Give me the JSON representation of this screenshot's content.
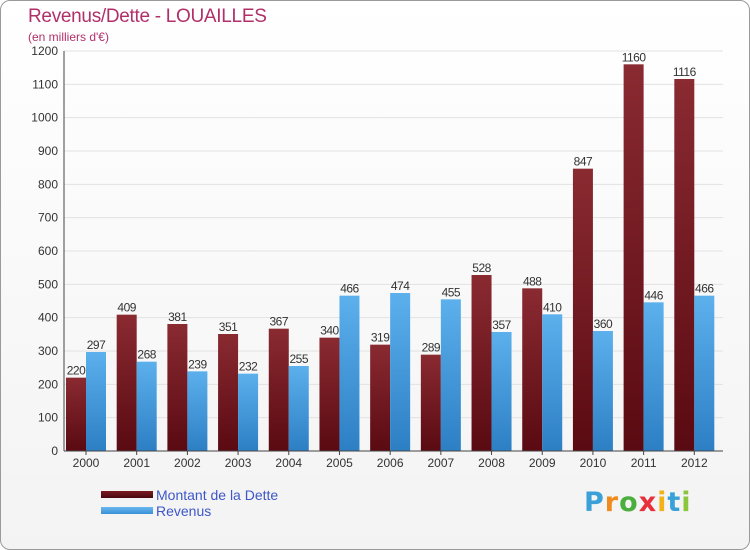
{
  "header": {
    "title": "Revenus/Dette - LOUAILLES",
    "subtitle": "(en milliers d'€)"
  },
  "chart_data": {
    "type": "bar",
    "title": "Revenus/Dette - LOUAILLES",
    "subtitle": "(en milliers d'€)",
    "categories": [
      "2000",
      "2001",
      "2002",
      "2003",
      "2004",
      "2005",
      "2006",
      "2007",
      "2008",
      "2009",
      "2010",
      "2011",
      "2012"
    ],
    "series": [
      {
        "name": "Montant de la Dette",
        "color": "#7a1b22",
        "values": [
          220,
          409,
          381,
          351,
          367,
          340,
          319,
          289,
          528,
          488,
          847,
          1160,
          1116
        ]
      },
      {
        "name": "Revenus",
        "color": "#4a9fe0",
        "values": [
          297,
          268,
          239,
          232,
          255,
          466,
          474,
          455,
          357,
          410,
          360,
          446,
          466
        ]
      }
    ],
    "ylim": [
      0,
      1200
    ],
    "yticks": [
      0,
      100,
      200,
      300,
      400,
      500,
      600,
      700,
      800,
      900,
      1000,
      1100,
      1200
    ],
    "grid": true,
    "legend_position": "bottom-left"
  },
  "legend": [
    {
      "label": "Montant de la Dette",
      "color": "#6b0f18"
    },
    {
      "label": "Revenus",
      "color": "#4a9fe0"
    }
  ],
  "logo": {
    "letters": [
      "P",
      "r",
      "o",
      "x",
      "i",
      "t",
      "i"
    ],
    "colors": [
      "#3aa0d8",
      "#f08a1c",
      "#4cae3c",
      "#e8303a",
      "#f2b318",
      "#3aa0d8",
      "#8cc63f"
    ]
  }
}
